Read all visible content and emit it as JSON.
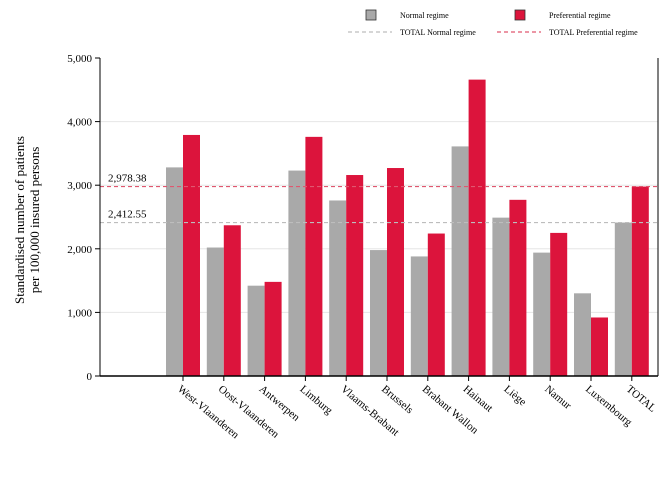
{
  "chart_data": {
    "type": "bar",
    "title": "",
    "ylabel": [
      "Standardised number of patients",
      "per 100,000 insured persons"
    ],
    "xlabel": "",
    "ylim": [
      0,
      5000
    ],
    "yticks": [
      0,
      1000,
      2000,
      3000,
      4000,
      5000
    ],
    "ytick_labels": [
      "0",
      "1,000",
      "2,000",
      "3,000",
      "4,000",
      "5,000"
    ],
    "grid": true,
    "legend_position": "top",
    "categories": [
      "West-Vlaanderen",
      "Oost-Vlaanderen",
      "Antwerpen",
      "Limburg",
      "Vlaams-Brabant",
      "Brussels",
      "Brabant Wallon",
      "Hainaut",
      "Liège",
      "Namur",
      "Luxembourg",
      "TOTAL"
    ],
    "series": [
      {
        "name": "Normal regime",
        "color": "#a9a9a9",
        "values": [
          3280,
          2020,
          1420,
          3230,
          2760,
          1980,
          1880,
          3610,
          2490,
          1940,
          1300,
          2412.55
        ]
      },
      {
        "name": "Preferential regime",
        "color": "#dc143c",
        "values": [
          3790,
          2370,
          1480,
          3760,
          3160,
          3270,
          2240,
          4660,
          2770,
          2250,
          920,
          2978.38
        ]
      }
    ],
    "reference_lines": [
      {
        "name": "TOTAL Normal regime",
        "value": 2412.55,
        "label": "2,412.55",
        "color": "#bdbdbd"
      },
      {
        "name": "TOTAL Preferential regime",
        "value": 2978.38,
        "label": "2,978.38",
        "color": "#e0576f"
      }
    ]
  }
}
